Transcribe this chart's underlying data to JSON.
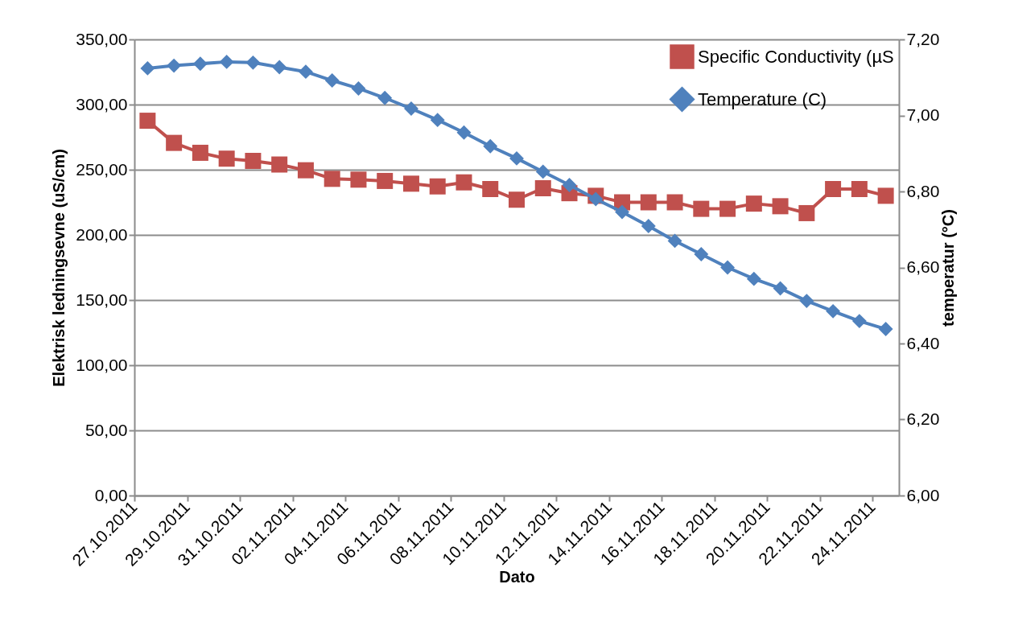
{
  "chart_data": {
    "type": "line",
    "xlabel": "Dato",
    "ylabel": "Elektrisk ledningsevne (uS/cm)",
    "y2label": "temperatur (°C)",
    "x": [
      "2011-10-27T12:00",
      "2011-10-28T12:00",
      "2011-10-29T12:00",
      "2011-10-30T12:00",
      "2011-10-31T12:00",
      "2011-11-01T12:00",
      "2011-11-02T12:00",
      "2011-11-03T12:00",
      "2011-11-04T12:00",
      "2011-11-05T12:00",
      "2011-11-06T12:00",
      "2011-11-07T12:00",
      "2011-11-08T12:00",
      "2011-11-09T12:00",
      "2011-11-10T12:00",
      "2011-11-11T12:00",
      "2011-11-12T12:00",
      "2011-11-13T12:00",
      "2011-11-14T12:00",
      "2011-11-15T12:00",
      "2011-11-16T12:00",
      "2011-11-17T12:00",
      "2011-11-18T12:00",
      "2011-11-19T12:00",
      "2011-11-20T12:00",
      "2011-11-21T12:00",
      "2011-11-22T12:00",
      "2011-11-23T12:00",
      "2011-11-24T12:00"
    ],
    "series": [
      {
        "name": "Specific Conductivity (µS",
        "color": "#c0504d",
        "marker": "square",
        "values": [
          287.6,
          270.6,
          263,
          258.5,
          256.8,
          254,
          249.6,
          243,
          242.4,
          241.4,
          239.3,
          237.2,
          240.3,
          235.2,
          227,
          235.8,
          232,
          230,
          225,
          225,
          225,
          220,
          220,
          224,
          222,
          216.7,
          235.2,
          235.2,
          230
        ]
      },
      {
        "name": "Temperature (C)",
        "color": "#4f81bd",
        "marker": "diamond",
        "axis": "y2",
        "values": [
          7.124,
          7.131,
          7.136,
          7.141,
          7.139,
          7.127,
          7.115,
          7.092,
          7.071,
          7.046,
          7.018,
          6.988,
          6.955,
          6.919,
          6.887,
          6.852,
          6.817,
          6.78,
          6.746,
          6.709,
          6.67,
          6.635,
          6.6,
          6.57,
          6.545,
          6.512,
          6.485,
          6.459,
          6.438
        ]
      }
    ],
    "xlim": [
      "2011-10-27",
      "2011-11-25"
    ],
    "xticks": [
      {
        "value": "2011-10-27",
        "label": "27.10.2011"
      },
      {
        "value": "2011-10-29",
        "label": "29.10.2011"
      },
      {
        "value": "2011-10-31",
        "label": "31.10.2011"
      },
      {
        "value": "2011-11-02",
        "label": "02.11.2011"
      },
      {
        "value": "2011-11-04",
        "label": "04.11.2011"
      },
      {
        "value": "2011-11-06",
        "label": "06.11.2011"
      },
      {
        "value": "2011-11-08",
        "label": "08.11.2011"
      },
      {
        "value": "2011-11-10",
        "label": "10.11.2011"
      },
      {
        "value": "2011-11-12",
        "label": "12.11.2011"
      },
      {
        "value": "2011-11-14",
        "label": "14.11.2011"
      },
      {
        "value": "2011-11-16",
        "label": "16.11.2011"
      },
      {
        "value": "2011-11-18",
        "label": "18.11.2011"
      },
      {
        "value": "2011-11-20",
        "label": "20.11.2011"
      },
      {
        "value": "2011-11-22",
        "label": "22.11.2011"
      },
      {
        "value": "2011-11-24",
        "label": "24.11.2011"
      }
    ],
    "ylim": [
      0,
      350
    ],
    "yticks": [
      {
        "value": 0,
        "label": "0,00"
      },
      {
        "value": 50,
        "label": "50,00"
      },
      {
        "value": 100,
        "label": "100,00"
      },
      {
        "value": 150,
        "label": "150,00"
      },
      {
        "value": 200,
        "label": "200,00"
      },
      {
        "value": 250,
        "label": "250,00"
      },
      {
        "value": 300,
        "label": "300,00"
      },
      {
        "value": 350,
        "label": "350,00"
      }
    ],
    "y2lim": [
      6,
      7.2
    ],
    "y2ticks": [
      {
        "value": 6,
        "label": "6,00"
      },
      {
        "value": 6.2,
        "label": "6,20"
      },
      {
        "value": 6.4,
        "label": "6,40"
      },
      {
        "value": 6.6,
        "label": "6,60"
      },
      {
        "value": 6.8,
        "label": "6,80"
      },
      {
        "value": 7,
        "label": "7,00"
      },
      {
        "value": 7.2,
        "label": "7,20"
      }
    ],
    "grid": "y",
    "legend": "top right"
  }
}
